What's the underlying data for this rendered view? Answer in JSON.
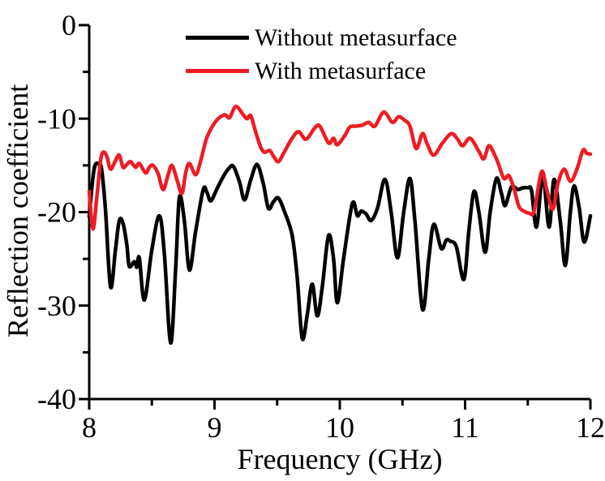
{
  "figure": {
    "background": "#ffffff"
  },
  "chart_data": {
    "type": "line",
    "title": "",
    "xlabel": "Frequency (GHz)",
    "ylabel": "Reflection coefficient",
    "xlim": [
      8,
      12
    ],
    "ylim": [
      -40,
      0
    ],
    "x_ticks": [
      8,
      9,
      10,
      11,
      12
    ],
    "x_minor_ticks": [
      8.5,
      9.5,
      10.5,
      11.5
    ],
    "y_ticks": [
      0,
      -10,
      -20,
      -30,
      -40
    ],
    "y_minor_ticks": [
      -5,
      -15,
      -25,
      -35
    ],
    "grid": false,
    "legend_position": "top-center-inside",
    "series": [
      {
        "name": "Without metasurface",
        "color": "#000000",
        "points": [
          [
            8.0,
            -20.5
          ],
          [
            8.03,
            -16.3
          ],
          [
            8.05,
            -14.9
          ],
          [
            8.08,
            -14.9
          ],
          [
            8.1,
            -15.5
          ],
          [
            8.13,
            -19.8
          ],
          [
            8.17,
            -28.0
          ],
          [
            8.21,
            -24.0
          ],
          [
            8.24,
            -20.9
          ],
          [
            8.27,
            -21.2
          ],
          [
            8.3,
            -23.5
          ],
          [
            8.32,
            -25.8
          ],
          [
            8.36,
            -25.3
          ],
          [
            8.38,
            -25.9
          ],
          [
            8.4,
            -24.9
          ],
          [
            8.44,
            -29.4
          ],
          [
            8.5,
            -24.0
          ],
          [
            8.56,
            -20.4
          ],
          [
            8.6,
            -24.5
          ],
          [
            8.65,
            -34.0
          ],
          [
            8.69,
            -26.0
          ],
          [
            8.72,
            -18.4
          ],
          [
            8.76,
            -21.0
          ],
          [
            8.8,
            -26.2
          ],
          [
            8.85,
            -22.0
          ],
          [
            8.91,
            -17.6
          ],
          [
            8.94,
            -17.9
          ],
          [
            8.97,
            -18.8
          ],
          [
            9.02,
            -17.5
          ],
          [
            9.07,
            -16.2
          ],
          [
            9.11,
            -15.4
          ],
          [
            9.15,
            -15.1
          ],
          [
            9.2,
            -16.8
          ],
          [
            9.24,
            -18.7
          ],
          [
            9.29,
            -16.5
          ],
          [
            9.34,
            -14.9
          ],
          [
            9.39,
            -17.0
          ],
          [
            9.43,
            -19.6
          ],
          [
            9.47,
            -18.9
          ],
          [
            9.51,
            -18.5
          ],
          [
            9.56,
            -20.0
          ],
          [
            9.62,
            -22.5
          ],
          [
            9.66,
            -27.0
          ],
          [
            9.7,
            -33.5
          ],
          [
            9.74,
            -31.0
          ],
          [
            9.78,
            -27.7
          ],
          [
            9.82,
            -31.1
          ],
          [
            9.86,
            -28.0
          ],
          [
            9.91,
            -22.5
          ],
          [
            9.95,
            -25.0
          ],
          [
            9.98,
            -29.7
          ],
          [
            10.03,
            -25.0
          ],
          [
            10.1,
            -19.1
          ],
          [
            10.14,
            -20.4
          ],
          [
            10.17,
            -19.9
          ],
          [
            10.21,
            -20.2
          ],
          [
            10.25,
            -20.9
          ],
          [
            10.3,
            -19.6
          ],
          [
            10.36,
            -16.5
          ],
          [
            10.41,
            -20.0
          ],
          [
            10.46,
            -24.9
          ],
          [
            10.51,
            -20.0
          ],
          [
            10.56,
            -16.4
          ],
          [
            10.6,
            -21.0
          ],
          [
            10.66,
            -30.4
          ],
          [
            10.71,
            -25.0
          ],
          [
            10.75,
            -21.3
          ],
          [
            10.81,
            -23.9
          ],
          [
            10.85,
            -23.0
          ],
          [
            10.88,
            -23.1
          ],
          [
            10.93,
            -23.7
          ],
          [
            10.99,
            -27.2
          ],
          [
            11.03,
            -22.0
          ],
          [
            11.07,
            -17.8
          ],
          [
            11.11,
            -20.0
          ],
          [
            11.16,
            -24.3
          ],
          [
            11.2,
            -20.0
          ],
          [
            11.25,
            -16.4
          ],
          [
            11.29,
            -18.0
          ],
          [
            11.32,
            -19.3
          ],
          [
            11.37,
            -17.3
          ],
          [
            11.42,
            -17.6
          ],
          [
            11.46,
            -17.4
          ],
          [
            11.5,
            -17.4
          ],
          [
            11.53,
            -17.7
          ],
          [
            11.57,
            -21.6
          ],
          [
            11.62,
            -16.1
          ],
          [
            11.67,
            -21.6
          ],
          [
            11.71,
            -16.5
          ],
          [
            11.76,
            -21.0
          ],
          [
            11.8,
            -25.7
          ],
          [
            11.84,
            -20.0
          ],
          [
            11.87,
            -17.2
          ],
          [
            11.91,
            -19.5
          ],
          [
            11.95,
            -23.2
          ],
          [
            12.0,
            -20.4
          ]
        ]
      },
      {
        "name": "With metasurface",
        "color": "#ED1C24",
        "points": [
          [
            8.0,
            -17.8
          ],
          [
            8.03,
            -21.8
          ],
          [
            8.06,
            -18.5
          ],
          [
            8.09,
            -14.6
          ],
          [
            8.11,
            -13.6
          ],
          [
            8.14,
            -14.0
          ],
          [
            8.17,
            -15.4
          ],
          [
            8.21,
            -14.5
          ],
          [
            8.24,
            -13.9
          ],
          [
            8.27,
            -15.2
          ],
          [
            8.3,
            -14.9
          ],
          [
            8.33,
            -14.6
          ],
          [
            8.37,
            -15.2
          ],
          [
            8.4,
            -14.8
          ],
          [
            8.45,
            -15.8
          ],
          [
            8.48,
            -15.2
          ],
          [
            8.51,
            -15.0
          ],
          [
            8.55,
            -15.9
          ],
          [
            8.59,
            -17.6
          ],
          [
            8.63,
            -16.0
          ],
          [
            8.66,
            -15.0
          ],
          [
            8.7,
            -16.5
          ],
          [
            8.74,
            -18.0
          ],
          [
            8.77,
            -15.8
          ],
          [
            8.8,
            -14.8
          ],
          [
            8.85,
            -16.0
          ],
          [
            8.89,
            -14.5
          ],
          [
            8.94,
            -12.0
          ],
          [
            9.01,
            -10.3
          ],
          [
            9.08,
            -9.6
          ],
          [
            9.12,
            -9.9
          ],
          [
            9.17,
            -8.7
          ],
          [
            9.23,
            -9.6
          ],
          [
            9.26,
            -10.0
          ],
          [
            9.29,
            -9.7
          ],
          [
            9.33,
            -11.5
          ],
          [
            9.37,
            -13.1
          ],
          [
            9.4,
            -13.6
          ],
          [
            9.44,
            -13.4
          ],
          [
            9.47,
            -14.0
          ],
          [
            9.51,
            -14.6
          ],
          [
            9.56,
            -13.5
          ],
          [
            9.61,
            -12.3
          ],
          [
            9.67,
            -11.4
          ],
          [
            9.73,
            -12.2
          ],
          [
            9.8,
            -11.0
          ],
          [
            9.84,
            -10.8
          ],
          [
            9.91,
            -12.6
          ],
          [
            9.95,
            -12.1
          ],
          [
            9.98,
            -12.8
          ],
          [
            10.04,
            -11.8
          ],
          [
            10.08,
            -10.9
          ],
          [
            10.13,
            -10.8
          ],
          [
            10.18,
            -10.7
          ],
          [
            10.23,
            -10.4
          ],
          [
            10.28,
            -10.8
          ],
          [
            10.35,
            -9.3
          ],
          [
            10.42,
            -10.4
          ],
          [
            10.47,
            -9.8
          ],
          [
            10.52,
            -10.2
          ],
          [
            10.56,
            -10.8
          ],
          [
            10.61,
            -13.2
          ],
          [
            10.66,
            -11.6
          ],
          [
            10.7,
            -12.8
          ],
          [
            10.75,
            -13.9
          ],
          [
            10.82,
            -12.6
          ],
          [
            10.89,
            -11.6
          ],
          [
            10.94,
            -12.2
          ],
          [
            10.98,
            -12.9
          ],
          [
            11.04,
            -12.1
          ],
          [
            11.11,
            -13.5
          ],
          [
            11.15,
            -14.3
          ],
          [
            11.19,
            -12.9
          ],
          [
            11.24,
            -14.0
          ],
          [
            11.27,
            -15.0
          ],
          [
            11.31,
            -16.4
          ],
          [
            11.35,
            -16.1
          ],
          [
            11.39,
            -17.5
          ],
          [
            11.43,
            -19.4
          ],
          [
            11.47,
            -19.9
          ],
          [
            11.51,
            -20.1
          ],
          [
            11.55,
            -19.9
          ],
          [
            11.61,
            -15.7
          ],
          [
            11.65,
            -17.5
          ],
          [
            11.7,
            -19.7
          ],
          [
            11.74,
            -17.0
          ],
          [
            11.79,
            -15.4
          ],
          [
            11.84,
            -16.7
          ],
          [
            11.89,
            -15.5
          ],
          [
            11.94,
            -13.4
          ],
          [
            11.97,
            -13.7
          ],
          [
            12.0,
            -13.8
          ]
        ]
      }
    ]
  }
}
